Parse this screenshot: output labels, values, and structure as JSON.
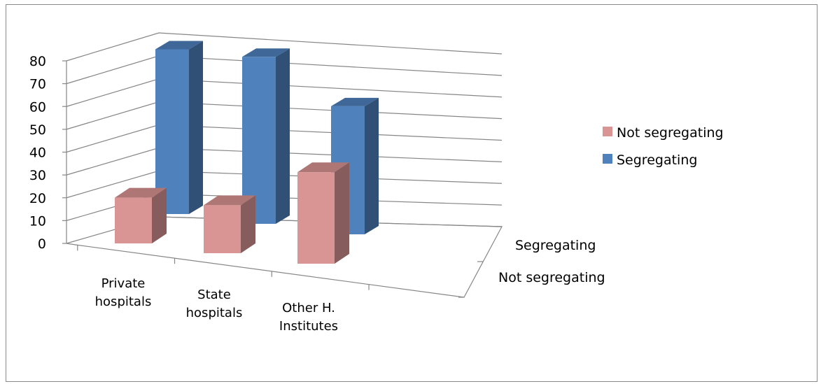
{
  "chart_data": {
    "type": "bar",
    "categories": [
      "Private hospitals",
      "State hospitals",
      "Other H. Institutes"
    ],
    "category_lines": [
      [
        "Private",
        "hospitals"
      ],
      [
        "State",
        "hospitals"
      ],
      [
        "Other H.",
        "Institutes"
      ]
    ],
    "series": [
      {
        "name": "Not segregating",
        "values": [
          20,
          21,
          40
        ],
        "color": "#d99594"
      },
      {
        "name": "Segregating",
        "values": [
          72,
          73,
          56
        ],
        "color": "#4f81bd"
      }
    ],
    "depth_labels": [
      "Segregating",
      "Not segregating"
    ],
    "y_ticks": [
      0,
      10,
      20,
      30,
      40,
      50,
      60,
      70,
      80
    ],
    "ylim": [
      0,
      80
    ],
    "legend": [
      "Not segregating",
      "Segregating"
    ],
    "legend_position": "right",
    "grid": true,
    "title": "",
    "xlabel": "",
    "ylabel": ""
  }
}
